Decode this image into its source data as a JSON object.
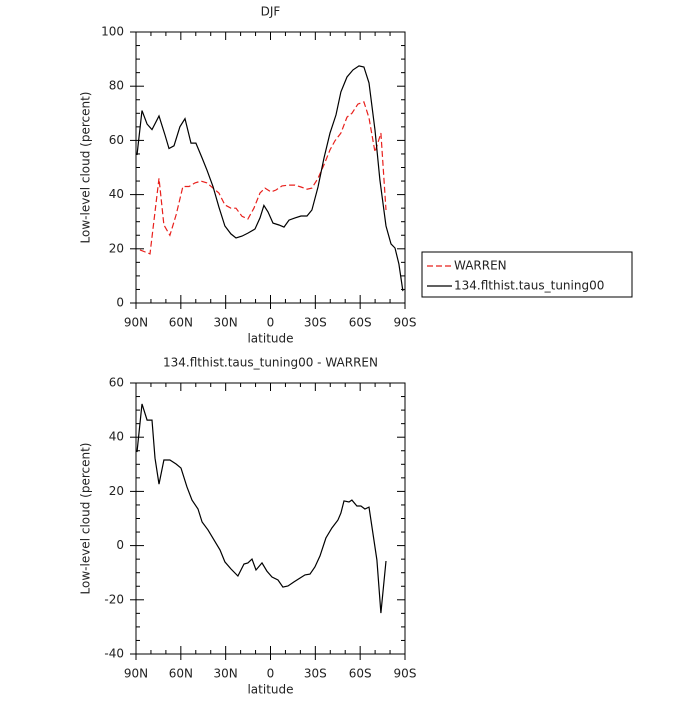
{
  "chart_data": [
    {
      "type": "line",
      "title": "DJF",
      "xlabel": "latitude",
      "ylabel": "Low-level cloud (percent)",
      "xlim": [
        90,
        -90
      ],
      "xticks": [
        {
          "value": 90,
          "label": "90N"
        },
        {
          "value": 60,
          "label": "60N"
        },
        {
          "value": 30,
          "label": "30N"
        },
        0,
        {
          "value": -30,
          "label": "30S"
        },
        {
          "value": -60,
          "label": "60S"
        },
        {
          "value": -90,
          "label": "90S"
        }
      ],
      "ylim": [
        0,
        100
      ],
      "yticks": [
        0,
        20,
        40,
        60,
        80,
        100
      ],
      "legend": "right",
      "series": [
        {
          "name": "WARREN",
          "color": "#e8201c",
          "line_style": "dashed",
          "x": [
            87.3,
            80.6,
            74.6,
            71.3,
            67.3,
            63.2,
            58.6,
            54.5,
            50.5,
            46.5,
            42.5,
            38.5,
            34.5,
            30.5,
            26.5,
            23.1,
            19.1,
            15.1,
            11.1,
            7,
            3.7,
            -0.3,
            -3.7,
            -7.7,
            -12.4,
            -16.4,
            -20.4,
            -24.4,
            -27.7,
            -31.8,
            -35.8,
            -39.8,
            -43.1,
            -47.1,
            -51.2,
            -54.5,
            -58.5,
            -62.5,
            -65.9,
            -69.9,
            -73.9,
            -77.3
          ],
          "values": [
            19.6,
            18.1,
            46,
            28.8,
            25,
            32.5,
            43,
            43,
            44.3,
            45,
            44.3,
            42.4,
            40.6,
            36.2,
            35,
            35,
            32,
            31,
            35,
            40.6,
            42.4,
            41,
            41.7,
            43.2,
            43.5,
            43.5,
            42.8,
            42,
            42.4,
            46,
            51,
            56.5,
            59.8,
            62.7,
            68.6,
            70,
            73.4,
            74.2,
            68.3,
            55.7,
            62.7,
            34.3
          ]
        },
        {
          "name": "134.flthist.taus_tuning00",
          "color": "#000000",
          "line_style": "solid",
          "x": [
            89.3,
            86,
            82.6,
            79.3,
            74.6,
            70.6,
            67.9,
            64.6,
            60.6,
            57.2,
            53.2,
            49.9,
            45.8,
            42.5,
            38.5,
            34.5,
            30.5,
            26.5,
            23.1,
            19.1,
            15.1,
            10.4,
            7,
            4.4,
            1.7,
            -1.7,
            -5.7,
            -9,
            -12.4,
            -16.4,
            -20.4,
            -24.4,
            -27.7,
            -31.8,
            -35.8,
            -39.8,
            -43.8,
            -47.1,
            -51.2,
            -55.2,
            -59.2,
            -62.5,
            -65.9,
            -69.9,
            -73.2,
            -77.3,
            -80.6,
            -83.3,
            -85.9,
            -88.6
          ],
          "values": [
            54.6,
            71,
            66,
            64,
            69,
            62,
            57,
            58,
            65,
            68,
            59,
            59,
            53.5,
            49,
            43,
            35.4,
            28.4,
            25.5,
            24,
            24.7,
            25.8,
            27.3,
            31.4,
            36,
            33.6,
            29.5,
            28.8,
            28,
            30.6,
            31.4,
            32.1,
            32.1,
            34.3,
            42.8,
            53.5,
            62.7,
            69.4,
            77.9,
            83.4,
            86,
            87.5,
            87.1,
            81.2,
            63.8,
            45.4,
            28.4,
            21.8,
            20.3,
            14.4,
            4.4
          ]
        }
      ]
    },
    {
      "type": "line",
      "title": "134.flthist.taus_tuning00 - WARREN",
      "xlabel": "latitude",
      "ylabel": "Low-level cloud (percent)",
      "xlim": [
        90,
        -90
      ],
      "xticks": [
        {
          "value": 90,
          "label": "90N"
        },
        {
          "value": 60,
          "label": "60N"
        },
        {
          "value": 30,
          "label": "30N"
        },
        0,
        {
          "value": -30,
          "label": "30S"
        },
        {
          "value": -60,
          "label": "60S"
        },
        {
          "value": -90,
          "label": "90S"
        }
      ],
      "ylim": [
        -40,
        60
      ],
      "yticks": [
        -40,
        -20,
        0,
        20,
        40,
        60
      ],
      "series": [
        {
          "color": "#000000",
          "line_style": "solid",
          "x": [
            89.3,
            86,
            82.6,
            79.3,
            77.3,
            74.6,
            71.3,
            67.3,
            63.2,
            59.9,
            55.9,
            52.5,
            48.5,
            45.8,
            41.8,
            37.8,
            33.8,
            30.5,
            26.5,
            21.8,
            17.7,
            15.1,
            12.4,
            9.7,
            5.7,
            2.4,
            -1,
            -5,
            -8.3,
            -11.7,
            -15.7,
            -19.7,
            -23.1,
            -26.4,
            -29.7,
            -33.1,
            -37.1,
            -41.1,
            -45.1,
            -47.1,
            -49.2,
            -52.5,
            -54.5,
            -57.8,
            -60.5,
            -63.2,
            -65.9,
            -69.2,
            -71.2,
            -73.9,
            -77.3
          ],
          "values": [
            34.5,
            52.3,
            46.3,
            46.3,
            32.3,
            22.7,
            31.6,
            31.6,
            30.1,
            28.6,
            21.6,
            16.8,
            13.5,
            8.7,
            5.8,
            2.1,
            -1.6,
            -6,
            -8.6,
            -11.2,
            -6.8,
            -6.4,
            -5,
            -9,
            -6.4,
            -9.4,
            -11.6,
            -12.7,
            -15.3,
            -14.9,
            -13.4,
            -12,
            -10.8,
            -10.5,
            -7.9,
            -3.8,
            2.8,
            6.5,
            9.4,
            12,
            16.5,
            16.1,
            16.8,
            14.6,
            14.6,
            13.5,
            14.2,
            2.1,
            -5.3,
            -24.9,
            -5.7
          ]
        }
      ]
    }
  ]
}
